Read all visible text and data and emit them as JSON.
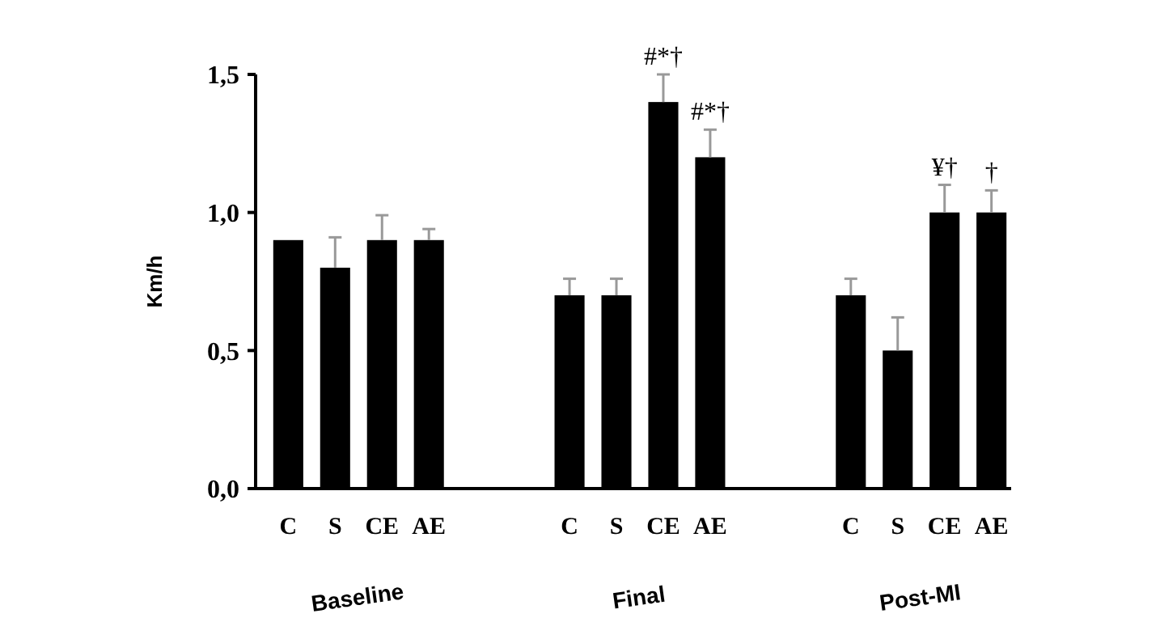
{
  "chart_data": {
    "type": "bar",
    "ylabel": "Km/h",
    "categories": [
      "C",
      "S",
      "CE",
      "AE",
      null,
      null,
      "C",
      "S",
      "CE",
      "AE",
      null,
      null,
      "C",
      "S",
      "CE",
      "AE"
    ],
    "values": [
      0.9,
      0.8,
      0.9,
      0.9,
      null,
      null,
      0.7,
      0.7,
      1.4,
      1.2,
      null,
      null,
      0.7,
      0.5,
      1.0,
      1.0
    ],
    "errors": [
      null,
      0.11,
      0.09,
      0.04,
      null,
      null,
      0.06,
      0.06,
      0.1,
      0.1,
      null,
      null,
      0.06,
      0.12,
      0.1,
      0.08
    ],
    "color": "#000000",
    "ylim": [
      0,
      1.5
    ],
    "yticks": [
      {
        "value": 0,
        "label": "0,0"
      },
      {
        "value": 0.5,
        "label": "0,5"
      },
      {
        "value": 1,
        "label": "1,0"
      },
      {
        "value": 1.5,
        "label": "1,5"
      }
    ],
    "value_labels": [
      null,
      null,
      null,
      null,
      null,
      null,
      null,
      null,
      "#*†",
      "#*†",
      null,
      null,
      null,
      null,
      "¥†",
      "†"
    ],
    "annotations": [
      "Baseline",
      "Final",
      "Post-MI"
    ]
  }
}
